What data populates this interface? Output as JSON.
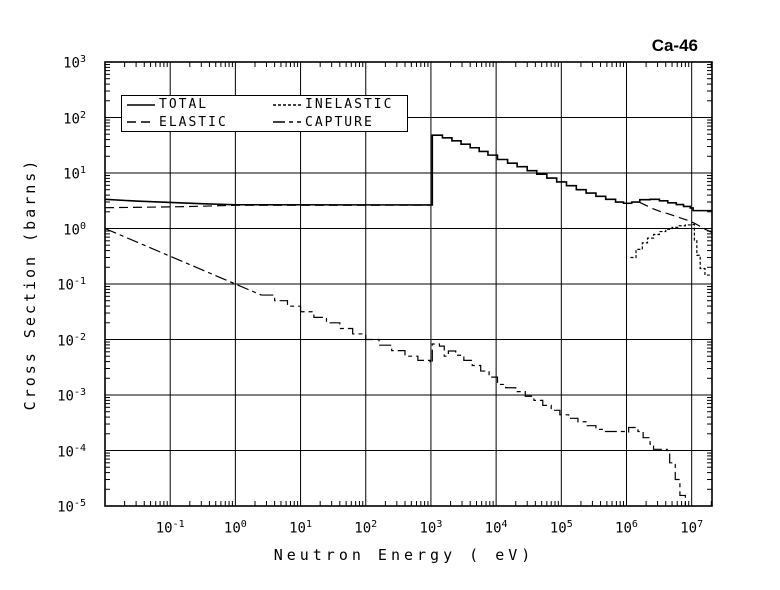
{
  "chart_data": {
    "type": "line",
    "title": "Ca-46",
    "xlabel": "Neutron Energy ( eV)",
    "ylabel": "Cross Section (barns)",
    "xscale": "log",
    "yscale": "log",
    "xlim": [
      0.01,
      20500000
    ],
    "ylim": [
      1e-05,
      1000
    ],
    "grid": true,
    "tick_base": "10",
    "x_tick_exponents": [
      -1,
      0,
      1,
      2,
      3,
      4,
      5,
      6,
      7
    ],
    "y_tick_exponents": [
      3,
      2,
      1,
      0,
      -1,
      -2,
      -3,
      -4,
      -5
    ],
    "legend_position": "top-left-inside",
    "legend_items": [
      {
        "label": "TOTAL",
        "dash": ""
      },
      {
        "label": "INELASTIC",
        "dash": "3,2"
      },
      {
        "label": "ELASTIC",
        "dash": "9,5"
      },
      {
        "label": "CAPTURE",
        "dash": "12,4,4,4"
      }
    ],
    "series": [
      {
        "name": "TOTAL",
        "color": "#000000",
        "dash": "",
        "width": 1.6,
        "segments": [
          {
            "mode": "line",
            "points": [
              [
                0.01,
                3.35
              ],
              [
                0.03,
                3.12
              ],
              [
                0.1,
                2.95
              ],
              [
                0.3,
                2.8
              ],
              [
                1,
                2.68
              ],
              [
                970,
                2.66
              ]
            ]
          },
          {
            "mode": "step",
            "points": [
              [
                970,
                2.66
              ],
              [
                1050,
                48
              ],
              [
                1500,
                43
              ],
              [
                2100,
                38
              ],
              [
                2900,
                33
              ],
              [
                4000,
                28.5
              ],
              [
                5500,
                24.5
              ],
              [
                7500,
                21
              ],
              [
                10500,
                17.5
              ],
              [
                15000,
                15
              ],
              [
                21000,
                13
              ],
              [
                30000,
                11
              ],
              [
                42000,
                9.5
              ],
              [
                60000,
                8.1
              ],
              [
                85000,
                6.9
              ],
              [
                120000,
                5.9
              ],
              [
                170000,
                5.0
              ],
              [
                240000,
                4.35
              ],
              [
                340000,
                3.8
              ],
              [
                480000,
                3.35
              ],
              [
                680000,
                3.0
              ],
              [
                900000,
                2.85
              ],
              [
                1200000,
                3.0
              ],
              [
                1600000,
                3.3
              ],
              [
                2300000,
                3.35
              ],
              [
                3200000,
                3.15
              ],
              [
                4300000,
                2.9
              ],
              [
                5800000,
                2.7
              ],
              [
                7500000,
                2.5
              ],
              [
                9500000,
                2.35
              ],
              [
                10500000,
                2.1
              ],
              [
                20500000,
                2.1
              ]
            ]
          }
        ]
      },
      {
        "name": "ELASTIC",
        "color": "#000000",
        "dash": "9,5",
        "width": 1.2,
        "segments": [
          {
            "mode": "line",
            "points": [
              [
                0.01,
                2.37
              ],
              [
                0.1,
                2.45
              ],
              [
                0.3,
                2.52
              ],
              [
                1,
                2.62
              ],
              [
                970,
                2.63
              ]
            ]
          },
          {
            "mode": "line",
            "points": [
              [
                1600000,
                2.95
              ],
              [
                2000000,
                2.6
              ],
              [
                2600000,
                2.25
              ],
              [
                3400000,
                2.0
              ],
              [
                4500000,
                1.82
              ],
              [
                6000000,
                1.62
              ],
              [
                8000000,
                1.45
              ],
              [
                10000000,
                1.32
              ],
              [
                13000000,
                1.12
              ],
              [
                16000000,
                0.97
              ],
              [
                20500000,
                0.85
              ]
            ]
          }
        ]
      },
      {
        "name": "INELASTIC",
        "color": "#000000",
        "dash": "3,2",
        "width": 1.2,
        "segments": [
          {
            "mode": "step",
            "points": [
              [
                1150000,
                0.3
              ],
              [
                1400000,
                0.42
              ],
              [
                1750000,
                0.55
              ],
              [
                2100000,
                0.67
              ],
              [
                2600000,
                0.78
              ],
              [
                3200000,
                0.88
              ],
              [
                4000000,
                0.97
              ],
              [
                5000000,
                1.05
              ],
              [
                6300000,
                1.12
              ],
              [
                8000000,
                1.16
              ],
              [
                10000000,
                1.18
              ],
              [
                11000000,
                0.62
              ],
              [
                12000000,
                0.33
              ],
              [
                13500000,
                0.19
              ],
              [
                16000000,
                0.145
              ],
              [
                20500000,
                0.13
              ]
            ]
          }
        ]
      },
      {
        "name": "CAPTURE",
        "color": "#000000",
        "dash": "12,4,4,4",
        "width": 1.2,
        "segments": [
          {
            "mode": "line",
            "points": [
              [
                0.01,
                1.0
              ],
              [
                2.5,
                0.0632
              ]
            ]
          },
          {
            "mode": "step",
            "points": [
              [
                2.5,
                0.0632
              ],
              [
                4,
                0.05
              ],
              [
                6.3,
                0.0398
              ],
              [
                10,
                0.0316
              ],
              [
                16,
                0.025
              ],
              [
                25,
                0.02
              ],
              [
                40,
                0.0158
              ],
              [
                63,
                0.0126
              ],
              [
                100,
                0.01
              ],
              [
                160,
                0.0079
              ],
              [
                250,
                0.0063
              ],
              [
                400,
                0.005
              ],
              [
                630,
                0.0042
              ],
              [
                970,
                0.0038
              ],
              [
                1050,
                0.0083
              ],
              [
                1350,
                0.0076
              ],
              [
                1600,
                0.005
              ],
              [
                1850,
                0.0062
              ],
              [
                2400,
                0.0052
              ],
              [
                3200,
                0.0042
              ],
              [
                4300,
                0.0034
              ],
              [
                5800,
                0.0027
              ],
              [
                7800,
                0.0021
              ],
              [
                10500,
                0.00155
              ],
              [
                14000,
                0.00135
              ],
              [
                20000,
                0.00115
              ],
              [
                28000,
                0.00095
              ],
              [
                38000,
                0.0008
              ],
              [
                52000,
                0.00065
              ],
              [
                70000,
                0.00053
              ],
              [
                95000,
                0.00044
              ],
              [
                130000,
                0.00038
              ],
              [
                180000,
                0.00033
              ],
              [
                250000,
                0.00028
              ],
              [
                340000,
                0.00024
              ],
              [
                450000,
                0.00022
              ],
              [
                1000000,
                0.000215
              ],
              [
                1080000,
                0.00026
              ],
              [
                1500000,
                0.00022
              ],
              [
                1800000,
                0.00017
              ],
              [
                2300000,
                0.00013
              ],
              [
                2600000,
                0.000105
              ],
              [
                4200000,
                0.0001
              ],
              [
                4600000,
                6e-05
              ],
              [
                5600000,
                3e-05
              ],
              [
                6600000,
                1.55e-05
              ],
              [
                8000000,
                9.5e-06
              ],
              [
                8600000,
                7e-06
              ]
            ]
          }
        ]
      }
    ],
    "frame_color": "#000000",
    "grid_color": "#000000",
    "background": "#ffffff"
  }
}
